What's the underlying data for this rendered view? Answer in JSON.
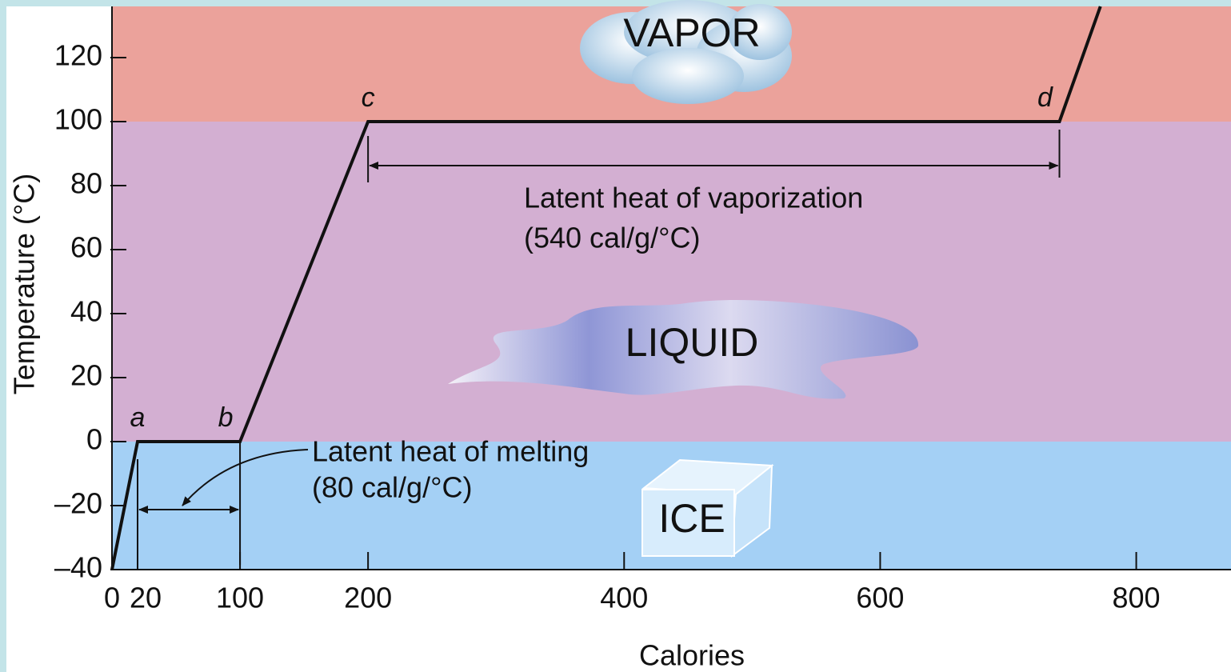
{
  "chart_data": {
    "type": "line",
    "x": [
      0,
      20,
      100,
      200,
      740,
      772
    ],
    "values": [
      -40,
      0,
      0,
      100,
      100,
      136
    ],
    "point_labels": [
      null,
      "a",
      "b",
      "c",
      "d",
      null
    ],
    "color": "#111111",
    "xlim": [
      0,
      874
    ],
    "ylim": [
      -40,
      136
    ],
    "xticks": [
      0,
      20,
      100,
      200,
      400,
      600,
      800
    ],
    "yticks": [
      {
        "value": -40,
        "label": "–40"
      },
      {
        "value": -20,
        "label": "–20"
      },
      0,
      20,
      40,
      60,
      80,
      100,
      120
    ],
    "x_label": "Calories",
    "y_label": "Temperature (°C)",
    "regions": [
      {
        "name": "VAPOR",
        "from": 100,
        "to": 136,
        "color": "#eba29b"
      },
      {
        "name": "LIQUID",
        "from": 0,
        "to": 100,
        "color": "#d3afd2"
      },
      {
        "name": "ICE",
        "from": -40,
        "to": 0,
        "color": "#a4d0f5"
      }
    ],
    "annotations": [
      "Latent heat of vaporization",
      "(540 cal/g/°C)",
      "Latent heat of melting",
      "(80 cal/g/°C)"
    ]
  }
}
